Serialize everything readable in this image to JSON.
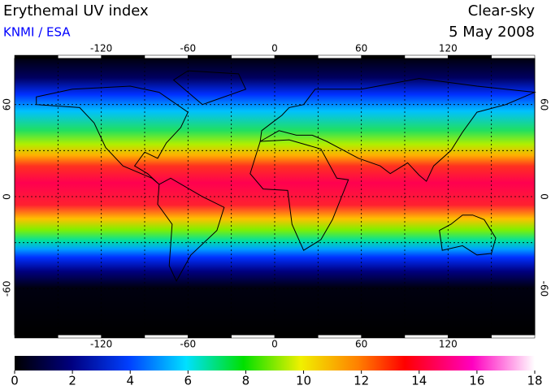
{
  "header": {
    "title": "Erythemal UV index",
    "source": "KNMI / ESA",
    "condition": "Clear-sky",
    "date": "5 May 2008"
  },
  "map": {
    "lonlim": [
      -180,
      180
    ],
    "latlim": [
      -90,
      90
    ],
    "lon_ticks": [
      -120,
      -60,
      0,
      60,
      120
    ],
    "lat_ticks": [
      60,
      0,
      -60
    ],
    "lon_grid": [
      -150,
      -120,
      -90,
      -60,
      -30,
      0,
      30,
      60,
      90,
      120,
      150
    ],
    "lat_grid": [
      60,
      30,
      0,
      -30,
      -60
    ]
  },
  "colorbar": {
    "lim": [
      0,
      18
    ],
    "ticks": [
      0,
      2,
      4,
      6,
      8,
      10,
      12,
      14,
      16,
      18
    ]
  }
}
